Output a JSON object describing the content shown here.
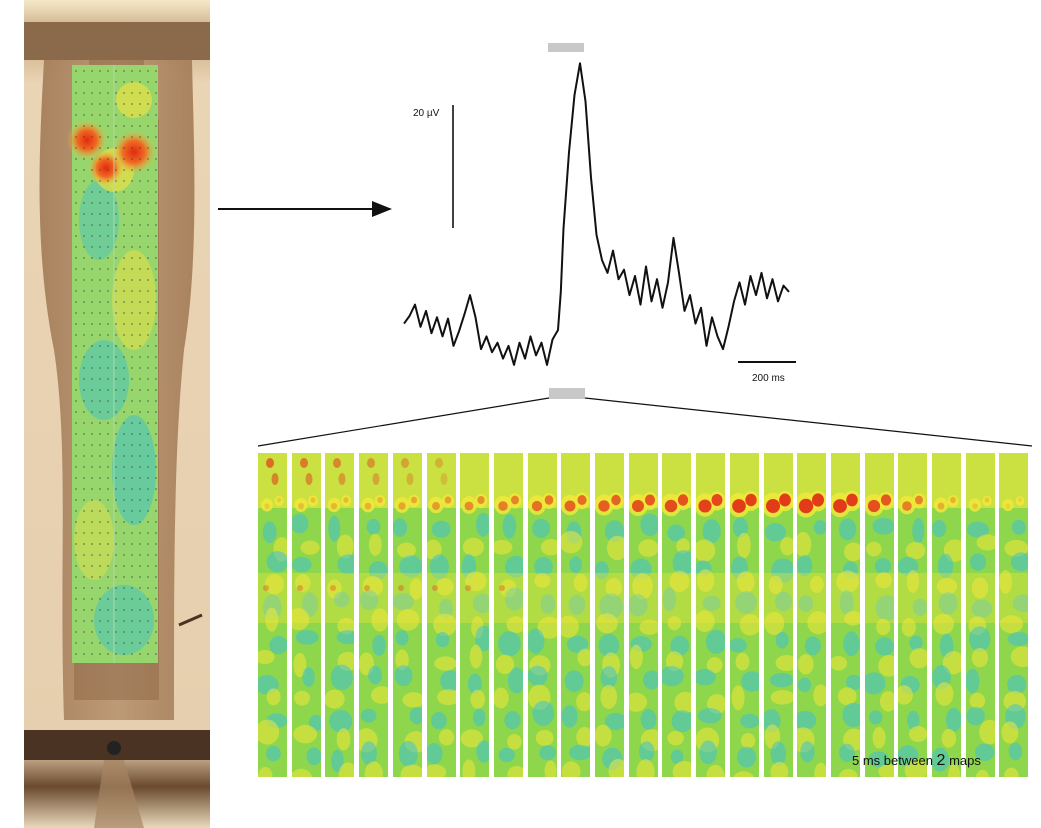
{
  "figure": {
    "left_panel": {
      "description_icon": "electrode-array-photo-with-activity-overlay"
    },
    "trace": {
      "amplitude_scale_label": "20 µV",
      "time_scale_label": "200 ms",
      "voltage_trace": [
        [
          0,
          0.1
        ],
        [
          0.01,
          0.22
        ],
        [
          0.02,
          0.4
        ],
        [
          0.03,
          0.05
        ],
        [
          0.04,
          0.3
        ],
        [
          0.05,
          -0.05
        ],
        [
          0.06,
          0.2
        ],
        [
          0.07,
          -0.1
        ],
        [
          0.08,
          0.18
        ],
        [
          0.09,
          -0.25
        ],
        [
          0.1,
          -0.02
        ],
        [
          0.11,
          0.25
        ],
        [
          0.12,
          0.55
        ],
        [
          0.13,
          0.2
        ],
        [
          0.14,
          -0.3
        ],
        [
          0.15,
          -0.1
        ],
        [
          0.16,
          -0.35
        ],
        [
          0.17,
          -0.2
        ],
        [
          0.18,
          -0.45
        ],
        [
          0.19,
          -0.25
        ],
        [
          0.2,
          -0.55
        ],
        [
          0.21,
          -0.2
        ],
        [
          0.22,
          -0.45
        ],
        [
          0.23,
          -0.1
        ],
        [
          0.24,
          -0.4
        ],
        [
          0.25,
          -0.2
        ],
        [
          0.26,
          -0.55
        ],
        [
          0.27,
          -0.15
        ],
        [
          0.28,
          0.0
        ],
        [
          0.285,
          0.6
        ],
        [
          0.29,
          1.6
        ],
        [
          0.3,
          2.8
        ],
        [
          0.31,
          3.7
        ],
        [
          0.32,
          4.2
        ],
        [
          0.33,
          3.6
        ],
        [
          0.34,
          2.4
        ],
        [
          0.35,
          1.5
        ],
        [
          0.36,
          1.1
        ],
        [
          0.37,
          0.9
        ],
        [
          0.38,
          1.25
        ],
        [
          0.39,
          0.8
        ],
        [
          0.4,
          0.95
        ],
        [
          0.41,
          0.55
        ],
        [
          0.42,
          0.85
        ],
        [
          0.43,
          0.4
        ],
        [
          0.44,
          1.0
        ],
        [
          0.45,
          0.45
        ],
        [
          0.46,
          0.8
        ],
        [
          0.47,
          0.35
        ],
        [
          0.48,
          0.75
        ],
        [
          0.49,
          1.45
        ],
        [
          0.5,
          0.9
        ],
        [
          0.51,
          0.3
        ],
        [
          0.52,
          0.55
        ],
        [
          0.53,
          0.1
        ],
        [
          0.54,
          0.35
        ],
        [
          0.55,
          -0.25
        ],
        [
          0.56,
          0.2
        ],
        [
          0.57,
          -0.1
        ],
        [
          0.58,
          -0.3
        ],
        [
          0.59,
          0.05
        ],
        [
          0.6,
          0.45
        ],
        [
          0.61,
          0.75
        ],
        [
          0.62,
          0.4
        ],
        [
          0.63,
          0.85
        ],
        [
          0.64,
          0.55
        ],
        [
          0.65,
          0.9
        ],
        [
          0.66,
          0.5
        ],
        [
          0.67,
          0.8
        ],
        [
          0.68,
          0.45
        ],
        [
          0.69,
          0.7
        ],
        [
          0.7,
          0.6
        ]
      ]
    },
    "maps": {
      "count": 23,
      "peak_intensity": [
        0.15,
        0.22,
        0.25,
        0.28,
        0.35,
        0.4,
        0.48,
        0.55,
        0.62,
        0.68,
        0.72,
        0.78,
        0.82,
        0.88,
        0.93,
        0.97,
        1.0,
        0.95,
        0.8,
        0.55,
        0.3,
        0.18,
        0.1
      ],
      "caption_prefix": "5 ms between ",
      "caption_number": "2",
      "caption_suffix": " maps"
    },
    "colors": {
      "cold": "#3cc1d4",
      "mid": "#8ed64b",
      "warm": "#f3e83a",
      "hot": "#e23b1a",
      "photo_brown": "#9b6f4a"
    }
  }
}
